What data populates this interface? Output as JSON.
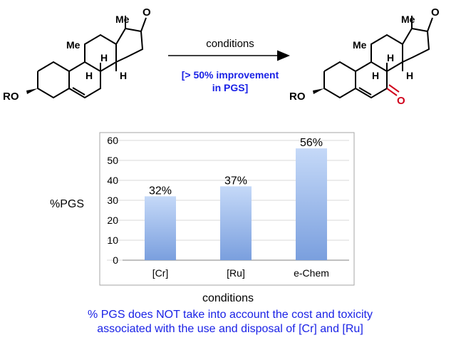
{
  "scheme": {
    "arrow_label": "conditions",
    "improvement_line1": "[> 50% improvement",
    "improvement_line2": "in PGS]",
    "left": {
      "me_top": "Me",
      "me_mid": "Me",
      "ketone_o": "O",
      "h1": "H",
      "h2": "H",
      "h3": "H",
      "ro": "RO"
    },
    "right": {
      "me_top": "Me",
      "me_mid": "Me",
      "ketone_o": "O",
      "enone_o": "O",
      "h1": "H",
      "h2": "H",
      "h3": "H",
      "ro": "RO"
    },
    "colors": {
      "bond": "#000000",
      "highlight": "#d0021b"
    }
  },
  "chart_data": {
    "type": "bar",
    "categories": [
      "[Cr]",
      "[Ru]",
      "e-Chem"
    ],
    "values": [
      32,
      37,
      56
    ],
    "data_labels": [
      "32%",
      "37%",
      "56%"
    ],
    "xlabel": "conditions",
    "ylabel": "%PGS",
    "ylim": [
      0,
      60
    ],
    "yticks": [
      0,
      10,
      20,
      30,
      40,
      50,
      60
    ],
    "grid": true,
    "legend": "none",
    "colors": {
      "bar_top": "#c5d9f8",
      "bar_bottom": "#7a9fde",
      "grid": "#d9d9d9",
      "frame": "#a6a6a6"
    }
  },
  "footnote": {
    "line1": "% PGS does NOT take into account the cost and toxicity",
    "line2": "associated with the use and disposal of [Cr] and [Ru]",
    "color": "#1a22e6"
  }
}
